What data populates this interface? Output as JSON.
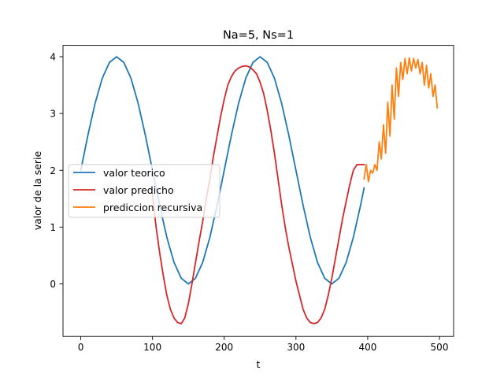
{
  "chart_data": {
    "type": "line",
    "title": "Na=5, Ns=1",
    "xlabel": "t",
    "ylabel": "valor de la serie",
    "xlim": [
      -24.75,
      519.75
    ],
    "ylim": [
      -0.925,
      4.2
    ],
    "xticks": [
      0,
      100,
      200,
      300,
      400,
      500
    ],
    "xtick_labels": [
      "0",
      "100",
      "200",
      "300",
      "400",
      "500"
    ],
    "yticks": [
      0,
      1,
      2,
      3,
      4
    ],
    "ytick_labels": [
      "0",
      "1",
      "2",
      "3",
      "4"
    ],
    "legend_position": "center-left",
    "series": [
      {
        "name": "valor teorico",
        "color": "#1f77b4",
        "x": [
          0,
          10,
          20,
          30,
          40,
          50,
          60,
          70,
          80,
          90,
          100,
          110,
          120,
          130,
          140,
          150,
          160,
          170,
          180,
          190,
          200,
          210,
          220,
          230,
          240,
          250,
          260,
          270,
          280,
          290,
          300,
          310,
          320,
          330,
          340,
          350,
          360,
          370,
          380,
          390,
          395
        ],
        "y": [
          2.0,
          2.62,
          3.18,
          3.62,
          3.9,
          4.0,
          3.9,
          3.62,
          3.18,
          2.62,
          2.0,
          1.38,
          0.82,
          0.38,
          0.1,
          0.0,
          0.1,
          0.38,
          0.82,
          1.38,
          2.0,
          2.62,
          3.18,
          3.62,
          3.9,
          4.0,
          3.9,
          3.62,
          3.18,
          2.62,
          2.0,
          1.38,
          0.82,
          0.38,
          0.1,
          0.0,
          0.1,
          0.38,
          0.82,
          1.38,
          1.69
        ]
      },
      {
        "name": "valor predicho",
        "color": "#d62728",
        "x": [
          99,
          105,
          110,
          115,
          120,
          125,
          130,
          135,
          140,
          145,
          150,
          155,
          160,
          165,
          170,
          175,
          180,
          185,
          190,
          195,
          200,
          205,
          210,
          215,
          220,
          225,
          230,
          235,
          240,
          245,
          250,
          255,
          260,
          265,
          270,
          275,
          280,
          285,
          290,
          295,
          300,
          305,
          310,
          315,
          320,
          325,
          330,
          335,
          340,
          345,
          350,
          355,
          360,
          365,
          370,
          375,
          380,
          385,
          390,
          395
        ],
        "y": [
          1.7,
          1.0,
          0.55,
          0.15,
          -0.2,
          -0.45,
          -0.6,
          -0.68,
          -0.7,
          -0.6,
          -0.35,
          0.0,
          0.38,
          0.75,
          1.1,
          1.5,
          1.85,
          2.25,
          2.6,
          2.95,
          3.25,
          3.5,
          3.65,
          3.75,
          3.8,
          3.83,
          3.84,
          3.82,
          3.77,
          3.7,
          3.55,
          3.35,
          3.05,
          2.7,
          2.3,
          1.85,
          1.4,
          1.0,
          0.65,
          0.35,
          0.05,
          -0.2,
          -0.45,
          -0.6,
          -0.68,
          -0.7,
          -0.68,
          -0.6,
          -0.45,
          -0.2,
          0.1,
          0.45,
          0.8,
          1.15,
          1.45,
          1.75,
          2.0,
          2.1,
          2.1,
          2.1
        ]
      },
      {
        "name": "prediccion recursiva",
        "color": "#ff7f0e",
        "x": [
          395,
          398,
          401,
          404,
          407,
          410,
          413,
          416,
          419,
          422,
          425,
          428,
          431,
          434,
          437,
          440,
          443,
          446,
          449,
          452,
          455,
          458,
          461,
          464,
          467,
          470,
          473,
          476,
          479,
          482,
          485,
          488,
          491,
          494,
          497
        ],
        "y": [
          1.85,
          2.1,
          1.8,
          2.0,
          1.95,
          2.1,
          2.0,
          2.5,
          2.2,
          2.8,
          2.3,
          3.2,
          2.6,
          3.5,
          2.9,
          3.8,
          3.3,
          3.9,
          3.6,
          3.97,
          3.7,
          3.98,
          3.75,
          3.97,
          3.8,
          3.95,
          3.7,
          3.9,
          3.5,
          3.85,
          3.45,
          3.7,
          3.3,
          3.5,
          3.1
        ]
      }
    ]
  }
}
